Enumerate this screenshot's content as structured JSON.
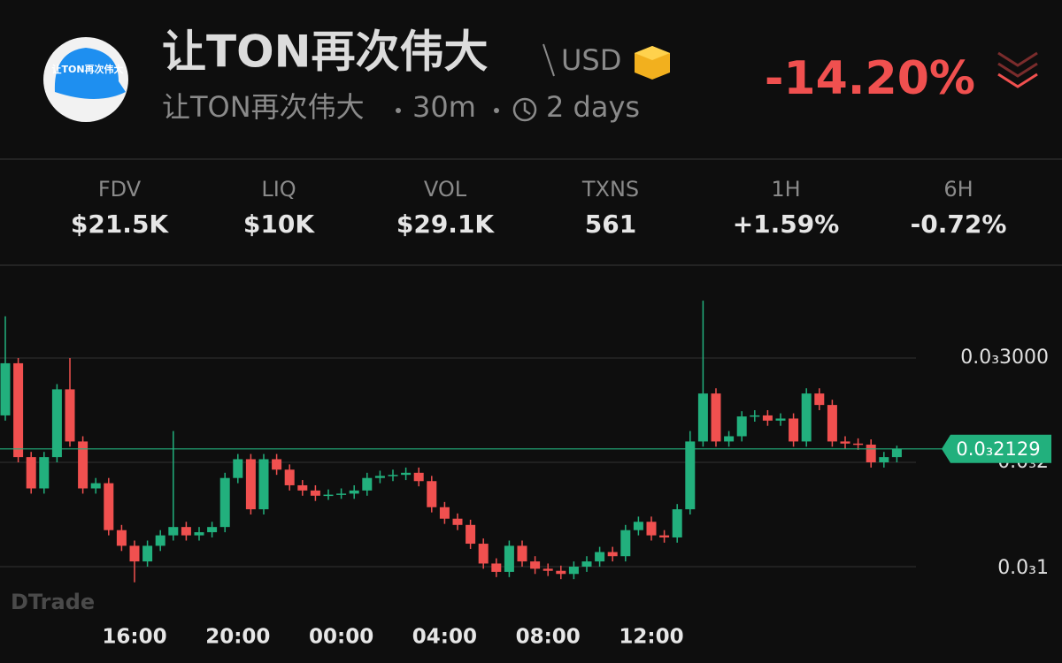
{
  "header": {
    "avatar_text": "让TON再次伟大",
    "title": "让TON再次伟大",
    "quote": "USD",
    "name": "让TON再次伟大",
    "interval": "30m",
    "age": "2 days",
    "change": "-14.20%"
  },
  "stats": [
    {
      "label": "FDV",
      "value": "$21.5K"
    },
    {
      "label": "LIQ",
      "value": "$10K"
    },
    {
      "label": "VOL",
      "value": "$29.1K"
    },
    {
      "label": "TXNS",
      "value": "561"
    },
    {
      "label": "1H",
      "value": "+1.59%"
    },
    {
      "label": "6H",
      "value": "-0.72%"
    }
  ],
  "chart_data": {
    "type": "candlestick",
    "watermark": "DTrade",
    "up_color": "#22b07d",
    "down_color": "#f0504f",
    "grid": true,
    "ylim": [
      5e-05,
      0.000389
    ],
    "yticks": [
      {
        "value": 0.0001,
        "label": "0.0₃1"
      },
      {
        "value": 0.0002,
        "label": "0.0₃2"
      },
      {
        "value": 0.0003,
        "label": "0.0₃3000"
      }
    ],
    "current_price": {
      "value": 0.0002129,
      "label": "0.0₃2129"
    },
    "categories": [
      null,
      null,
      null,
      null,
      null,
      null,
      null,
      null,
      null,
      null,
      "16:00",
      null,
      null,
      null,
      null,
      null,
      null,
      null,
      "20:00",
      null,
      null,
      null,
      null,
      null,
      null,
      null,
      "00:00",
      null,
      null,
      null,
      null,
      null,
      null,
      null,
      "04:00",
      null,
      null,
      null,
      null,
      null,
      null,
      null,
      "08:00",
      null,
      null,
      null,
      null,
      null,
      null,
      null,
      "12:00",
      null,
      null,
      null,
      null,
      null,
      null,
      null,
      null,
      null,
      null,
      null,
      null,
      null,
      null,
      null,
      null,
      null,
      null,
      null
    ],
    "open": [
      0.000245,
      0.000295,
      0.000205,
      0.000175,
      0.000205,
      0.00027,
      0.00022,
      0.000175,
      0.00018,
      0.000135,
      0.00012,
      0.000105,
      0.00012,
      0.00013,
      0.000138,
      0.00013,
      0.000133,
      0.000138,
      0.000185,
      0.000203,
      0.000155,
      0.000203,
      0.000193,
      0.000178,
      0.000173,
      0.000168,
      0.000169,
      0.00017,
      0.000173,
      0.000185,
      0.000187,
      0.000188,
      0.00019,
      0.000182,
      0.000157,
      0.000146,
      0.00014,
      0.000122,
      0.000103,
      9.5e-05,
      0.00012,
      0.000105,
      9.8e-05,
      9.6e-05,
      9.3e-05,
      0.0001,
      0.000105,
      0.000114,
      0.00011,
      0.000135,
      0.000143,
      0.00013,
      0.000128,
      0.000155,
      0.00022,
      0.000266,
      0.00022,
      0.000225,
      0.000244,
      0.000245,
      0.00024,
      0.000242,
      0.00022,
      0.000266,
      0.000255,
      0.00022,
      0.000218,
      0.000217,
      0.0002,
      0.000205
    ],
    "high": [
      0.00034,
      0.0003,
      0.00021,
      0.00021,
      0.000275,
      0.0003,
      0.000225,
      0.000185,
      0.000185,
      0.00014,
      0.000125,
      0.000125,
      0.000135,
      0.00023,
      0.000143,
      0.000138,
      0.000143,
      0.00019,
      0.000208,
      0.000208,
      0.000208,
      0.000208,
      0.000198,
      0.000183,
      0.000178,
      0.000174,
      0.000175,
      0.000178,
      0.00019,
      0.000192,
      0.000193,
      0.000195,
      0.000195,
      0.000187,
      0.000162,
      0.000151,
      0.000145,
      0.000127,
      0.000108,
      0.000125,
      0.000125,
      0.00011,
      0.000103,
      0.000101,
      0.000105,
      0.00011,
      0.000119,
      0.000119,
      0.00014,
      0.000148,
      0.000148,
      0.000135,
      0.00016,
      0.00023,
      0.000355,
      0.000271,
      0.00023,
      0.000249,
      0.00025,
      0.00025,
      0.000247,
      0.000247,
      0.000271,
      0.000271,
      0.00026,
      0.000225,
      0.000223,
      0.000222,
      0.00021,
      0.000216
    ],
    "low": [
      0.00024,
      0.0002,
      0.00017,
      0.00017,
      0.0002,
      0.000215,
      0.00017,
      0.00017,
      0.00013,
      0.000115,
      8.5e-05,
      0.0001,
      0.000115,
      0.000125,
      0.000125,
      0.000125,
      0.000128,
      0.000133,
      0.00018,
      0.00015,
      0.00015,
      0.000188,
      0.000173,
      0.000168,
      0.000163,
      0.000164,
      0.000165,
      0.000165,
      0.000168,
      0.00018,
      0.000182,
      0.000183,
      0.000177,
      0.000152,
      0.000141,
      0.000135,
      0.000117,
      9.8e-05,
      9e-05,
      9e-05,
      0.0001,
      9.3e-05,
      9.1e-05,
      8.8e-05,
      8.8e-05,
      9.5e-05,
      0.0001,
      0.000105,
      0.000105,
      0.00013,
      0.000125,
      0.000123,
      0.000123,
      0.00015,
      0.000215,
      0.000215,
      0.000215,
      0.00022,
      0.000239,
      0.000235,
      0.000235,
      0.000215,
      0.000215,
      0.00025,
      0.000215,
      0.000213,
      0.000212,
      0.000195,
      0.000195,
      0.0002
    ],
    "close": [
      0.000295,
      0.000205,
      0.000175,
      0.000205,
      0.00027,
      0.00022,
      0.000175,
      0.00018,
      0.000135,
      0.00012,
      0.000105,
      0.00012,
      0.00013,
      0.000138,
      0.00013,
      0.000133,
      0.000138,
      0.000185,
      0.000203,
      0.000155,
      0.000203,
      0.000193,
      0.000178,
      0.000173,
      0.000168,
      0.000169,
      0.00017,
      0.000173,
      0.000185,
      0.000187,
      0.000188,
      0.00019,
      0.000182,
      0.000157,
      0.000146,
      0.00014,
      0.000122,
      0.000103,
      9.5e-05,
      0.00012,
      0.000105,
      9.8e-05,
      9.6e-05,
      9.3e-05,
      0.0001,
      0.000105,
      0.000114,
      0.00011,
      0.000135,
      0.000143,
      0.00013,
      0.000128,
      0.000155,
      0.00022,
      0.000266,
      0.00022,
      0.000225,
      0.000244,
      0.000245,
      0.00024,
      0.000242,
      0.00022,
      0.000266,
      0.000255,
      0.00022,
      0.000218,
      0.000217,
      0.0002,
      0.000205,
      0.0002129
    ]
  }
}
